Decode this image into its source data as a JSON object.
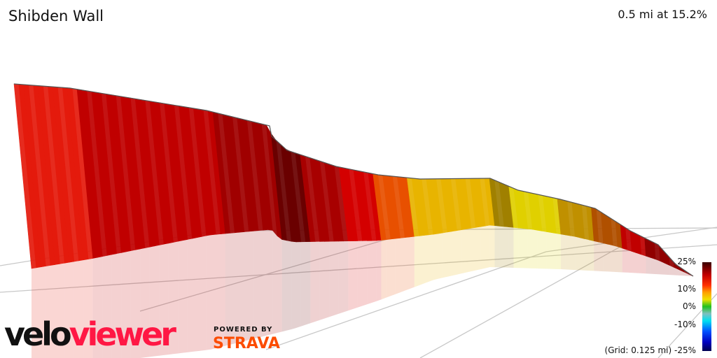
{
  "header": {
    "title": "Shibden Wall",
    "summary": "0.5 mi at 15.2%"
  },
  "chart_data": {
    "type": "area",
    "title": "Shibden Wall",
    "subtitle": "0.5 mi at 15.2%",
    "view": "3d-elevation-profile",
    "distance_mi": 0.5,
    "average_gradient_pct": 15.2,
    "grid_label": "(Grid: 0.125 mi)",
    "grid_spacing_mi": 0.125,
    "color_scale": {
      "ticks": [
        "25%",
        "10%",
        "0%",
        "-10%",
        "-25%"
      ],
      "range_pct": [
        -25,
        25
      ],
      "stops": [
        {
          "pct": 25,
          "color": "#3a0000"
        },
        {
          "pct": 18,
          "color": "#c00000"
        },
        {
          "pct": 12,
          "color": "#ff3000"
        },
        {
          "pct": 8,
          "color": "#ffa000"
        },
        {
          "pct": 4,
          "color": "#f0e000"
        },
        {
          "pct": 0,
          "color": "#20c020"
        },
        {
          "pct": -4,
          "color": "#80c0c0"
        },
        {
          "pct": -8,
          "color": "#00e0f0"
        },
        {
          "pct": -14,
          "color": "#0050ff"
        },
        {
          "pct": -20,
          "color": "#0000c0"
        },
        {
          "pct": -25,
          "color": "#000050"
        }
      ]
    },
    "segment_colors": [
      {
        "from": 0,
        "to": 0.09,
        "color": "#e41a0c"
      },
      {
        "from": 0.09,
        "to": 0.29,
        "color": "#c00000"
      },
      {
        "from": 0.29,
        "to": 0.38,
        "color": "#a00000"
      },
      {
        "from": 0.38,
        "to": 0.42,
        "color": "#6a0000"
      },
      {
        "from": 0.42,
        "to": 0.48,
        "color": "#a80000"
      },
      {
        "from": 0.48,
        "to": 0.53,
        "color": "#d40000"
      },
      {
        "from": 0.53,
        "to": 0.58,
        "color": "#e85000"
      },
      {
        "from": 0.58,
        "to": 0.7,
        "color": "#e8b400"
      },
      {
        "from": 0.7,
        "to": 0.73,
        "color": "#a08000"
      },
      {
        "from": 0.73,
        "to": 0.8,
        "color": "#e0d000"
      },
      {
        "from": 0.8,
        "to": 0.85,
        "color": "#c09000"
      },
      {
        "from": 0.85,
        "to": 0.89,
        "color": "#b05000"
      },
      {
        "from": 0.89,
        "to": 0.93,
        "color": "#c00000"
      },
      {
        "from": 0.93,
        "to": 1,
        "color": "#900000"
      }
    ]
  },
  "branding": {
    "logo_a": "velo",
    "logo_b": "viewer",
    "powered": "POWERED BY",
    "strava": "STRAVA"
  }
}
